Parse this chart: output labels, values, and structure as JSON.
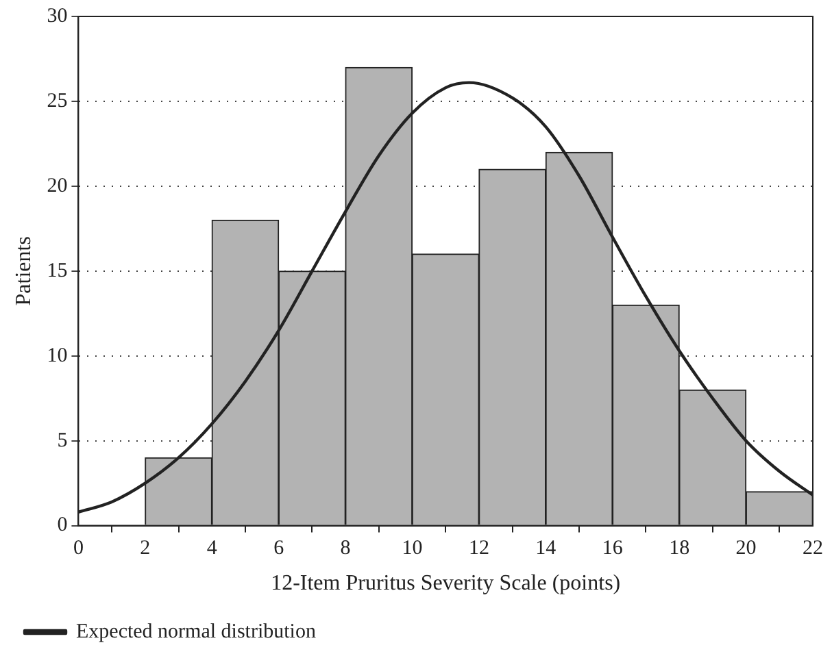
{
  "chart_data": {
    "type": "histogram",
    "xlabel": "12-Item Pruritus Severity Scale (points)",
    "ylabel": "Patients",
    "bins": [
      0,
      2,
      4,
      6,
      8,
      10,
      12,
      14,
      16,
      18,
      20,
      22
    ],
    "values": [
      0,
      4,
      18,
      15,
      27,
      16,
      21,
      22,
      13,
      8,
      2
    ],
    "color": "#b3b3b3",
    "series": [
      {
        "type": "line",
        "name": "Expected normal distribution",
        "color": "#222222",
        "x": [
          0,
          1,
          2,
          3,
          4,
          5,
          6,
          7,
          8,
          9,
          10,
          11,
          11.7,
          13,
          14,
          15,
          16,
          17,
          18,
          19,
          20,
          21,
          22
        ],
        "values": [
          0.8,
          1.4,
          2.5,
          4,
          6,
          8.5,
          11.5,
          15,
          18.5,
          21.8,
          24.3,
          25.8,
          26.1,
          25.2,
          23.5,
          20.6,
          17,
          13.5,
          10.3,
          7.5,
          5,
          3.2,
          1.8
        ]
      }
    ],
    "xlim": [
      0,
      22
    ],
    "xticks": [
      0,
      2,
      4,
      6,
      8,
      10,
      12,
      14,
      16,
      18,
      20,
      22
    ],
    "ylim": [
      0,
      30
    ],
    "yticks": [
      0,
      5,
      10,
      15,
      20,
      25,
      30
    ],
    "grid": "y",
    "legend": "bottom left",
    "marker": "none",
    "line_style": "solid"
  }
}
